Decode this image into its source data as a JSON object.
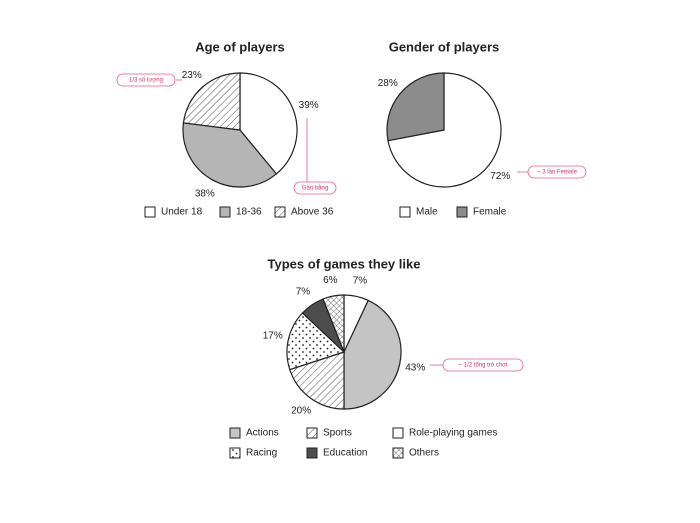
{
  "chart_data": [
    {
      "type": "pie",
      "title": "Age of players",
      "categories": [
        "Under 18",
        "18-36",
        "Above 36"
      ],
      "values": [
        39,
        38,
        23
      ],
      "value_labels": [
        "39%",
        "38%",
        "23%"
      ],
      "colors": [
        "#ffffff",
        "#b5b5b5",
        "#ffffff"
      ],
      "patterns": [
        null,
        null,
        "hatch"
      ],
      "annotations": [
        "Gần bằng",
        "1/3 số lượng"
      ]
    },
    {
      "type": "pie",
      "title": "Gender of players",
      "categories": [
        "Male",
        "Female"
      ],
      "values": [
        72,
        28
      ],
      "value_labels": [
        "72%",
        "28%"
      ],
      "colors": [
        "#ffffff",
        "#8c8c8c"
      ],
      "patterns": [
        null,
        null
      ],
      "annotations": [
        "~ 3 lần Female"
      ]
    },
    {
      "type": "pie",
      "title": "Types of games they like",
      "categories": [
        "Role-playing games",
        "Actions",
        "Sports",
        "Racing",
        "Education",
        "Others"
      ],
      "values": [
        7,
        43,
        20,
        17,
        7,
        6
      ],
      "value_labels": [
        "7%",
        "43%",
        "20%",
        "17%",
        "7%",
        "6%"
      ],
      "colors": [
        "#ffffff",
        "#c4c4c4",
        "#ffffff",
        "#ffffff",
        "#4d4d4d",
        "#ffffff"
      ],
      "patterns": [
        null,
        null,
        "hatch",
        "dots",
        null,
        "cross"
      ],
      "annotations": [
        "~ 1/2 tổng trò chơi"
      ]
    }
  ]
}
